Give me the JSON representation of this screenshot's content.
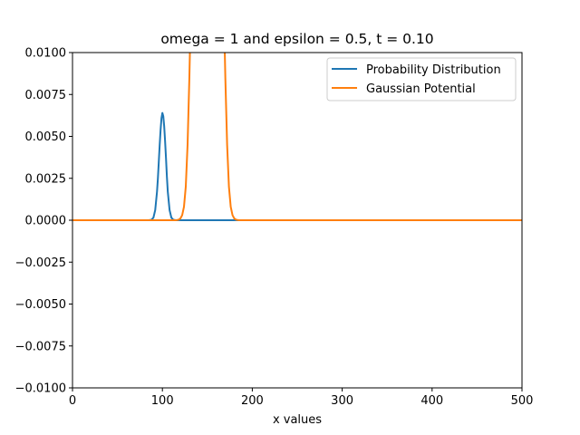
{
  "chart_data": {
    "type": "line",
    "title": "omega =  1 and epsilon =  0.5,         t = 0.10",
    "xlabel": "x values",
    "ylabel": "",
    "xlim": [
      0,
      500
    ],
    "ylim": [
      -0.01,
      0.01
    ],
    "x_ticks": [
      0,
      100,
      200,
      300,
      400,
      500
    ],
    "x_tick_labels": [
      "0",
      "100",
      "200",
      "300",
      "400",
      "500"
    ],
    "y_ticks": [
      -0.01,
      -0.0075,
      -0.005,
      -0.0025,
      0.0,
      0.0025,
      0.005,
      0.0075,
      0.01
    ],
    "y_tick_labels": [
      "−0.0100",
      "−0.0075",
      "−0.0050",
      "−0.0025",
      "0.0000",
      "0.0025",
      "0.0050",
      "0.0075",
      "0.0100"
    ],
    "grid": false,
    "legend_position": "top-right",
    "series": [
      {
        "name": "Probability Distribution",
        "color": "#1f77b4",
        "x": [
          0,
          85,
          88,
          90,
          92,
          94,
          95,
          96,
          97,
          98,
          99,
          100,
          101,
          102,
          103,
          104,
          105,
          106,
          108,
          110,
          112,
          115,
          500
        ],
        "y": [
          0,
          0,
          3e-05,
          0.00015,
          0.0006,
          0.0017,
          0.0025,
          0.0035,
          0.0045,
          0.0054,
          0.0061,
          0.0064,
          0.0062,
          0.0056,
          0.0047,
          0.0037,
          0.0026,
          0.0017,
          0.0006,
          0.00015,
          3e-05,
          0,
          0
        ]
      },
      {
        "name": "Gaussian Potential",
        "color": "#ff7f0e",
        "x": [
          0,
          115,
          118,
          120,
          122,
          124,
          126,
          128,
          130,
          131,
          132,
          168,
          169,
          170,
          172,
          174,
          176,
          178,
          180,
          182,
          185,
          500
        ],
        "y": [
          0,
          0,
          3e-05,
          0.0001,
          0.0003,
          0.0008,
          0.002,
          0.0045,
          0.0085,
          0.011,
          0.015,
          0.015,
          0.011,
          0.0085,
          0.0045,
          0.002,
          0.0008,
          0.0003,
          0.0001,
          3e-05,
          0,
          0
        ]
      }
    ]
  }
}
